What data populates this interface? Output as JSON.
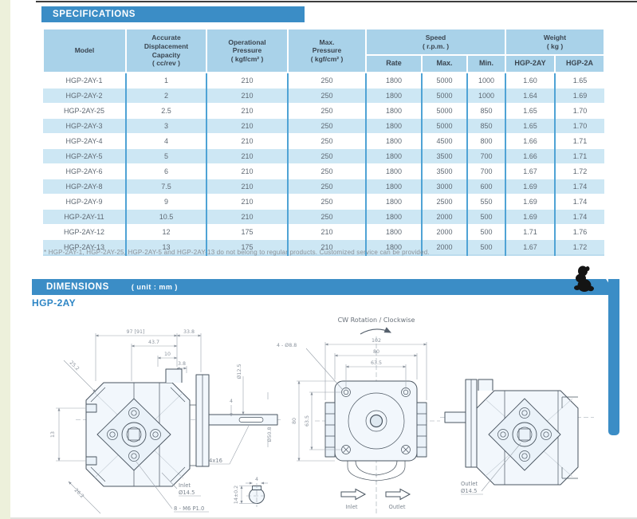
{
  "page": {
    "spec_section_title": "SPECIFICATIONS",
    "dim_section_title": "DIMENSIONS",
    "dim_section_unit": "( unit : mm )",
    "model_series_title": "HGP-2AY",
    "footnote": "* HGP-2AY-1, HGP-2AY-25, HGP-2AY-5 and HGP-2AY-13 do not belong to regular products. Customized service can be provided."
  },
  "table": {
    "header": {
      "model": "Model",
      "capacity": "Accurate\nDisplacement\nCapacity\n( cc/rev )",
      "op_pressure": "Operational\nPressure\n( kgf/cm² )",
      "max_pressure": "Max.\nPressure\n( kgf/cm² )",
      "speed": "Speed\n( r.p.m. )",
      "weight": "Weight\n( kg )",
      "rate": "Rate",
      "max": "Max.",
      "min": "Min.",
      "weight_2ay": "HGP-2AY",
      "weight_2a": "HGP-2A"
    },
    "rows": [
      [
        "HGP-2AY-1",
        "1",
        "210",
        "250",
        "1800",
        "5000",
        "1000",
        "1.60",
        "1.65"
      ],
      [
        "HGP-2AY-2",
        "2",
        "210",
        "250",
        "1800",
        "5000",
        "1000",
        "1.64",
        "1.69"
      ],
      [
        "HGP-2AY-25",
        "2.5",
        "210",
        "250",
        "1800",
        "5000",
        "850",
        "1.65",
        "1.70"
      ],
      [
        "HGP-2AY-3",
        "3",
        "210",
        "250",
        "1800",
        "5000",
        "850",
        "1.65",
        "1.70"
      ],
      [
        "HGP-2AY-4",
        "4",
        "210",
        "250",
        "1800",
        "4500",
        "800",
        "1.66",
        "1.71"
      ],
      [
        "HGP-2AY-5",
        "5",
        "210",
        "250",
        "1800",
        "3500",
        "700",
        "1.66",
        "1.71"
      ],
      [
        "HGP-2AY-6",
        "6",
        "210",
        "250",
        "1800",
        "3500",
        "700",
        "1.67",
        "1.72"
      ],
      [
        "HGP-2AY-8",
        "7.5",
        "210",
        "250",
        "1800",
        "3000",
        "600",
        "1.69",
        "1.74"
      ],
      [
        "HGP-2AY-9",
        "9",
        "210",
        "250",
        "1800",
        "2500",
        "550",
        "1.69",
        "1.74"
      ],
      [
        "HGP-2AY-11",
        "10.5",
        "210",
        "250",
        "1800",
        "2000",
        "500",
        "1.69",
        "1.74"
      ],
      [
        "HGP-2AY-12",
        "12",
        "175",
        "210",
        "1800",
        "2000",
        "500",
        "1.71",
        "1.76"
      ],
      [
        "HGP-2AY-13",
        "13",
        "175",
        "210",
        "1800",
        "2000",
        "500",
        "1.67",
        "1.72"
      ]
    ]
  },
  "drawings": {
    "rotation_note": "CW Rotation / Clockwise",
    "left_view": {
      "len_total": "97 [91]",
      "len_rear": "33.8",
      "len_front": "43.7",
      "len_step": "10",
      "len_key_offset": "3.8",
      "chamfer_top": "25.2",
      "port_spacing": "13",
      "chamfer_bottom": "26.2",
      "shaft_dia": "Ø12.5",
      "pilot_dia": "Ø50.8",
      "key_height": "4",
      "key_spec": "4x16",
      "inlet_label": "Inlet",
      "inlet_dia": "Ø14.5",
      "thread_spec": "8 - M6 P1.0"
    },
    "front_view": {
      "overall_width": "102",
      "flange_width": "80",
      "bolt_spacing_h": "63.5",
      "flange_height": "80",
      "bolt_spacing_v": "63.5",
      "bolt_hole_spec": "4 - Ø8.8",
      "inlet_label": "Inlet",
      "outlet_label": "Outlet"
    },
    "right_view": {
      "outlet_label": "Outlet",
      "outlet_dia": "Ø14.5"
    },
    "key_detail": {
      "key_width": "4",
      "shaft_height": "14±0.2"
    }
  }
}
